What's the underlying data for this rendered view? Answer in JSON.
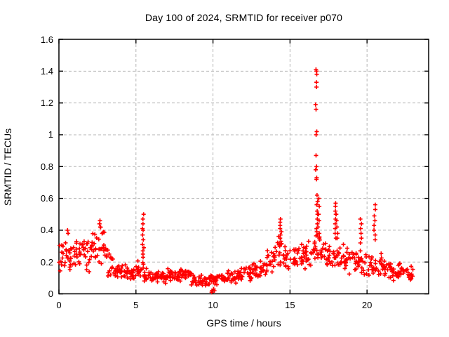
{
  "window": {
    "background": "#ffffff"
  },
  "chart_data": {
    "type": "scatter",
    "title": "Day 100 of 2024, SRMTID for receiver p070",
    "xlabel": "GPS time / hours",
    "ylabel": "SRMTID / TECUs",
    "xlim": [
      0,
      24
    ],
    "ylim": [
      0,
      1.6
    ],
    "xticks": {
      "values": [
        0,
        5,
        10,
        15,
        20
      ],
      "labels": [
        "0",
        "5",
        "10",
        "15",
        "20"
      ]
    },
    "yticks": {
      "values": [
        0,
        0.2,
        0.4,
        0.6,
        0.8,
        1.0,
        1.2,
        1.4,
        1.6
      ],
      "labels": [
        "0",
        "0.2",
        "0.4",
        "0.6",
        "0.8",
        "1",
        "1.2",
        "1.4",
        "1.6"
      ]
    },
    "grid": {
      "show": true,
      "style": "dashed",
      "color": "#b4b4b4"
    },
    "border_color": "#000000",
    "marker": {
      "shape": "plus",
      "color": "#ff0000",
      "size": 7
    },
    "series_name": "SRMTID",
    "time_range_hours": [
      0.0,
      23.0
    ],
    "bin_width_hours": 0.5,
    "points_per_bin": 16,
    "band_envelope": [
      [
        0.0,
        0.14,
        0.33
      ],
      [
        0.5,
        0.14,
        0.34
      ],
      [
        1.0,
        0.15,
        0.35
      ],
      [
        1.5,
        0.1,
        0.36
      ],
      [
        2.0,
        0.16,
        0.42
      ],
      [
        2.5,
        0.18,
        0.45
      ],
      [
        3.0,
        0.1,
        0.32
      ],
      [
        3.5,
        0.08,
        0.2
      ],
      [
        4.0,
        0.08,
        0.19
      ],
      [
        4.5,
        0.07,
        0.17
      ],
      [
        5.0,
        0.08,
        0.22
      ],
      [
        5.5,
        0.07,
        0.16
      ],
      [
        6.0,
        0.06,
        0.15
      ],
      [
        6.5,
        0.06,
        0.15
      ],
      [
        7.0,
        0.06,
        0.16
      ],
      [
        7.5,
        0.07,
        0.17
      ],
      [
        8.0,
        0.07,
        0.17
      ],
      [
        8.5,
        0.05,
        0.14
      ],
      [
        9.0,
        0.04,
        0.13
      ],
      [
        9.5,
        0.03,
        0.12
      ],
      [
        10.0,
        0.04,
        0.13
      ],
      [
        10.5,
        0.05,
        0.14
      ],
      [
        11.0,
        0.06,
        0.15
      ],
      [
        11.5,
        0.07,
        0.16
      ],
      [
        12.0,
        0.08,
        0.18
      ],
      [
        12.5,
        0.09,
        0.2
      ],
      [
        13.0,
        0.1,
        0.23
      ],
      [
        13.5,
        0.12,
        0.28
      ],
      [
        14.0,
        0.15,
        0.38
      ],
      [
        14.5,
        0.15,
        0.33
      ],
      [
        15.0,
        0.14,
        0.3
      ],
      [
        15.5,
        0.15,
        0.33
      ],
      [
        16.0,
        0.15,
        0.34
      ],
      [
        16.5,
        0.16,
        0.38
      ],
      [
        17.0,
        0.15,
        0.34
      ],
      [
        17.5,
        0.15,
        0.34
      ],
      [
        18.0,
        0.14,
        0.33
      ],
      [
        18.5,
        0.12,
        0.3
      ],
      [
        19.0,
        0.12,
        0.29
      ],
      [
        19.5,
        0.12,
        0.28
      ],
      [
        20.0,
        0.1,
        0.26
      ],
      [
        20.5,
        0.11,
        0.26
      ],
      [
        21.0,
        0.1,
        0.22
      ],
      [
        21.5,
        0.08,
        0.2
      ],
      [
        22.0,
        0.08,
        0.2
      ],
      [
        22.5,
        0.08,
        0.18
      ]
    ],
    "spike_columns": [
      {
        "t": 0.6,
        "ys": [
          0.4,
          0.38
        ]
      },
      {
        "t": 2.65,
        "ys": [
          0.46,
          0.44,
          0.42
        ]
      },
      {
        "t": 5.47,
        "ys": [
          0.5,
          0.47,
          0.44,
          0.41,
          0.4,
          0.37,
          0.34,
          0.31,
          0.29,
          0.27,
          0.25,
          0.23
        ]
      },
      {
        "t": 9.95,
        "ys": [
          0.02,
          0.01
        ]
      },
      {
        "t": 10.05,
        "ys": [
          0.03,
          0.02
        ]
      },
      {
        "t": 14.4,
        "ys": [
          0.47,
          0.45,
          0.43,
          0.41,
          0.39,
          0.37,
          0.35,
          0.33,
          0.31
        ]
      },
      {
        "t": 16.7,
        "ys": [
          1.41,
          1.4,
          1.38,
          1.33,
          1.3,
          1.19,
          1.16,
          1.02,
          1.0,
          0.87,
          0.8,
          0.78,
          0.73
        ]
      },
      {
        "t": 16.76,
        "ys": [
          0.72,
          0.62,
          0.58,
          0.56,
          0.52,
          0.5,
          0.47,
          0.44,
          0.41,
          0.39,
          0.37
        ]
      },
      {
        "t": 16.86,
        "ys": [
          0.6,
          0.55,
          0.5,
          0.46,
          0.42,
          0.38,
          0.35
        ]
      },
      {
        "t": 17.95,
        "ys": [
          0.57,
          0.55,
          0.52,
          0.5,
          0.47,
          0.44,
          0.41,
          0.38,
          0.35
        ]
      },
      {
        "t": 18.05,
        "ys": [
          0.5,
          0.46,
          0.42,
          0.38,
          0.35
        ]
      },
      {
        "t": 19.6,
        "ys": [
          0.47,
          0.44,
          0.41,
          0.38,
          0.35,
          0.32
        ]
      },
      {
        "t": 20.5,
        "ys": [
          0.56,
          0.53,
          0.49,
          0.46,
          0.43,
          0.4,
          0.37,
          0.34
        ]
      }
    ]
  }
}
